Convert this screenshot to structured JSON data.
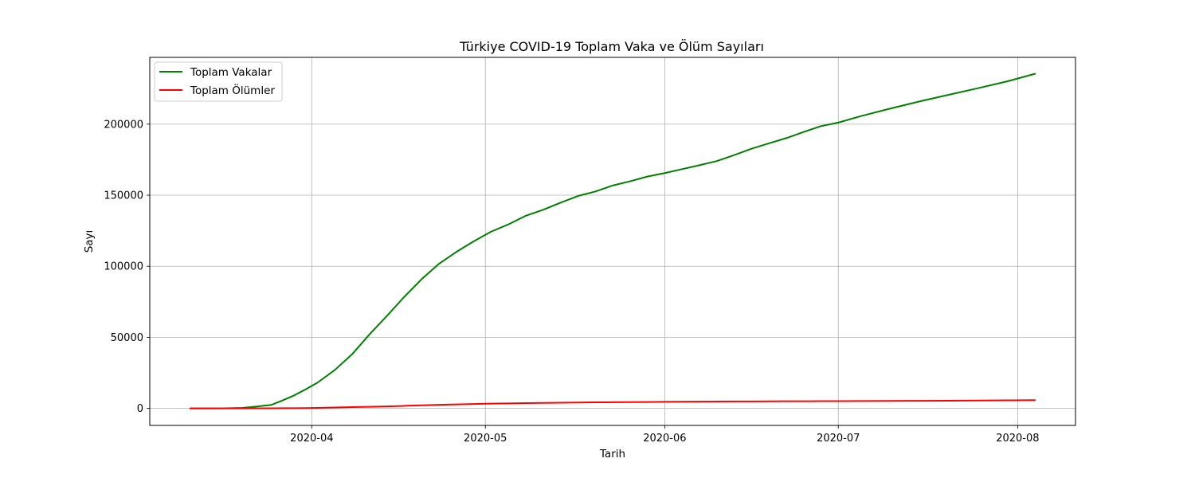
{
  "chart_data": {
    "type": "line",
    "title": "Türkiye COVID-19 Toplam Vaka ve Ölüm Sayıları",
    "xlabel": "Tarih",
    "ylabel": "Sayı",
    "x_ticks": [
      "2020-04",
      "2020-05",
      "2020-06",
      "2020-07",
      "2020-08"
    ],
    "y_ticks": [
      "0",
      "50000",
      "100000",
      "150000",
      "200000"
    ],
    "xlim": [
      "2020-03-04",
      "2020-08-11"
    ],
    "ylim": [
      -12000,
      247000
    ],
    "grid": true,
    "legend_position": "top-left",
    "x": [
      "2020-03-11",
      "2020-03-14",
      "2020-03-17",
      "2020-03-20",
      "2020-03-23",
      "2020-03-25",
      "2020-03-27",
      "2020-03-29",
      "2020-03-31",
      "2020-04-02",
      "2020-04-05",
      "2020-04-08",
      "2020-04-11",
      "2020-04-14",
      "2020-04-17",
      "2020-04-20",
      "2020-04-23",
      "2020-04-26",
      "2020-04-29",
      "2020-05-02",
      "2020-05-05",
      "2020-05-08",
      "2020-05-11",
      "2020-05-14",
      "2020-05-17",
      "2020-05-20",
      "2020-05-23",
      "2020-05-26",
      "2020-05-29",
      "2020-06-01",
      "2020-06-04",
      "2020-06-07",
      "2020-06-10",
      "2020-06-13",
      "2020-06-16",
      "2020-06-19",
      "2020-06-22",
      "2020-06-25",
      "2020-06-28",
      "2020-07-01",
      "2020-07-05",
      "2020-07-10",
      "2020-07-15",
      "2020-07-20",
      "2020-07-25",
      "2020-07-30",
      "2020-08-04"
    ],
    "series": [
      {
        "name": "Toplam Vakalar",
        "color": "#008000",
        "values": [
          1,
          6,
          47,
          359,
          1529,
          2433,
          5698,
          9217,
          13531,
          18135,
          27069,
          38226,
          52167,
          65111,
          78546,
          90980,
          101790,
          110130,
          117589,
          124375,
          129491,
          135569,
          139771,
          144749,
          149435,
          152587,
          156827,
          159797,
          163103,
          165555,
          168340,
          171121,
          174023,
          178239,
          182727,
          186493,
          190165,
          194511,
          198613,
          201098,
          205758,
          210965,
          215940,
          220572,
          225173,
          229891,
          235429
        ]
      },
      {
        "name": "Toplam Ölümler",
        "color": "#ff0000",
        "values": [
          0,
          0,
          1,
          9,
          37,
          59,
          92,
          131,
          214,
          356,
          649,
          908,
          1101,
          1403,
          1769,
          2140,
          2491,
          2805,
          3081,
          3336,
          3520,
          3689,
          3841,
          3952,
          4140,
          4222,
          4308,
          4397,
          4489,
          4585,
          4648,
          4729,
          4807,
          4861,
          4905,
          4950,
          5001,
          5046,
          5082,
          5131,
          5167,
          5225,
          5300,
          5382,
          5491,
          5645,
          5812
        ]
      }
    ]
  }
}
